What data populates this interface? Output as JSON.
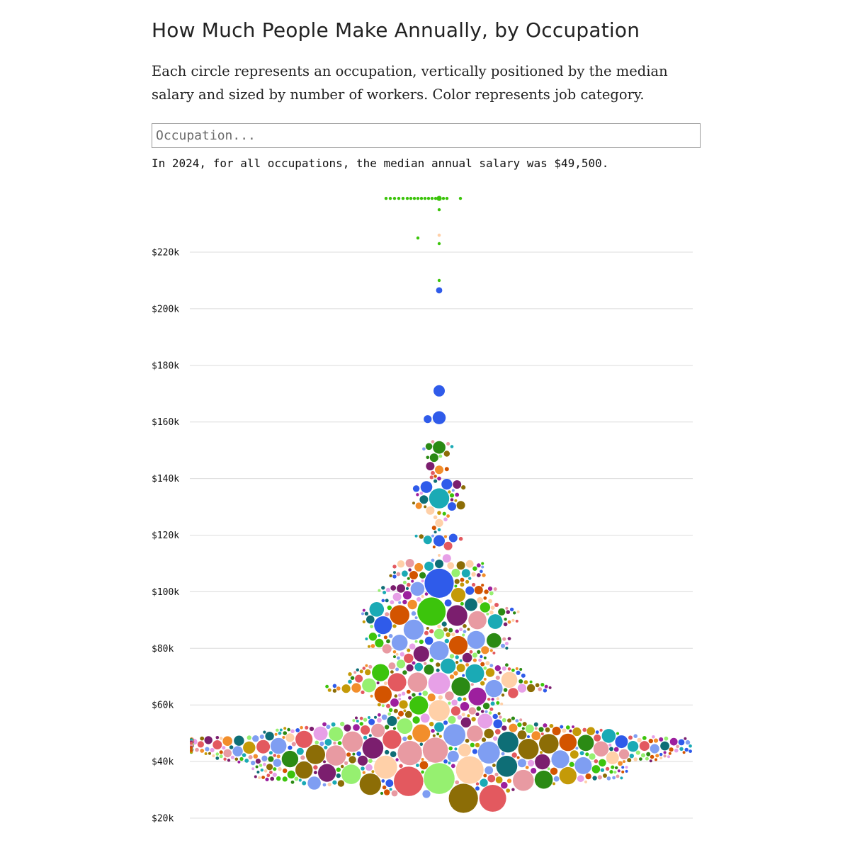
{
  "header": {
    "title": "How Much People Make Annually, by Occupation",
    "subtitle": "Each circle represents an occupation, vertically positioned by the median salary and sized by number of workers. Color represents job category."
  },
  "search": {
    "placeholder": "Occupation...",
    "value": ""
  },
  "summary_text": "In 2024, for all occupations, the median annual salary was $49,500.",
  "chart_data": {
    "type": "scatter",
    "title": "",
    "xlabel": "",
    "ylabel": "",
    "y_tick_labels": [
      "$220k",
      "$200k",
      "$180k",
      "$160k",
      "$140k",
      "$120k",
      "$100k",
      "$80k",
      "$60k",
      "$40k",
      "$20k"
    ],
    "y_ticks": [
      220000,
      200000,
      180000,
      160000,
      140000,
      120000,
      100000,
      80000,
      60000,
      40000,
      20000
    ],
    "ylim": [
      20000,
      240000
    ],
    "grid": true,
    "legend": "none",
    "encoding": {
      "y": "median annual salary (USD)",
      "size": "number of workers",
      "color": "job category"
    },
    "category_colors": [
      "#3cc40c",
      "#2f5bea",
      "#1aaab5",
      "#0e6e76",
      "#2b8a14",
      "#e3595f",
      "#f28e2b",
      "#ffd0a8",
      "#e89aa2",
      "#9d1f9e",
      "#7b1e6e",
      "#8c6d06",
      "#c49a08",
      "#96f070",
      "#e7a0e7",
      "#7f9ef2",
      "#d35400"
    ],
    "highlighted_points": [
      {
        "salary": 239000,
        "workers": 12000,
        "category": 0
      },
      {
        "salary": 226000,
        "workers": 5000,
        "category": 7
      },
      {
        "salary": 206500,
        "workers": 18000,
        "category": 1
      },
      {
        "salary": 171000,
        "workers": 60000,
        "category": 1
      },
      {
        "salary": 161500,
        "workers": 80000,
        "category": 1
      },
      {
        "salary": 161000,
        "workers": 30000,
        "category": 1
      },
      {
        "salary": 151000,
        "workers": 75000,
        "category": 4
      },
      {
        "salary": 137000,
        "workers": 65000,
        "category": 1
      },
      {
        "salary": 138000,
        "workers": 55000,
        "category": 1
      },
      {
        "salary": 133000,
        "workers": 190000,
        "category": 2
      },
      {
        "salary": 118000,
        "workers": 60000,
        "category": 1
      },
      {
        "salary": 109000,
        "workers": 40000,
        "category": 2
      },
      {
        "salary": 103000,
        "workers": 400000,
        "category": 1
      },
      {
        "salary": 101000,
        "workers": 90000,
        "category": 15
      },
      {
        "salary": 93000,
        "workers": 380000,
        "category": 0
      },
      {
        "salary": 82000,
        "workers": 120000,
        "category": 15
      },
      {
        "salary": 83000,
        "workers": 150000,
        "category": 15
      },
      {
        "salary": 68000,
        "workers": 160000,
        "category": 5
      },
      {
        "salary": 68000,
        "workers": 180000,
        "category": 8
      },
      {
        "salary": 63000,
        "workers": 150000,
        "category": 9
      },
      {
        "salary": 58000,
        "workers": 210000,
        "category": 7
      },
      {
        "salary": 50000,
        "workers": 150000,
        "category": 6
      },
      {
        "salary": 52000,
        "workers": 5000,
        "category": 6
      },
      {
        "salary": 47000,
        "workers": 200000,
        "category": 8
      },
      {
        "salary": 44000,
        "workers": 300000,
        "category": 8
      },
      {
        "salary": 43000,
        "workers": 280000,
        "category": 8
      },
      {
        "salary": 38000,
        "workers": 250000,
        "category": 7
      },
      {
        "salary": 37000,
        "workers": 360000,
        "category": 7
      },
      {
        "salary": 36000,
        "workers": 150000,
        "category": 10
      },
      {
        "salary": 35500,
        "workers": 180000,
        "category": 13
      },
      {
        "salary": 34000,
        "workers": 450000,
        "category": 13
      },
      {
        "salary": 33000,
        "workers": 410000,
        "category": 5
      },
      {
        "salary": 32000,
        "workers": 220000,
        "category": 11
      },
      {
        "salary": 27000,
        "workers": 400000,
        "category": 11
      },
      {
        "salary": 27000,
        "workers": 340000,
        "category": 5
      },
      {
        "salary": 35000,
        "workers": 140000,
        "category": 12
      },
      {
        "salary": 37000,
        "workers": 140000,
        "category": 11
      }
    ]
  }
}
